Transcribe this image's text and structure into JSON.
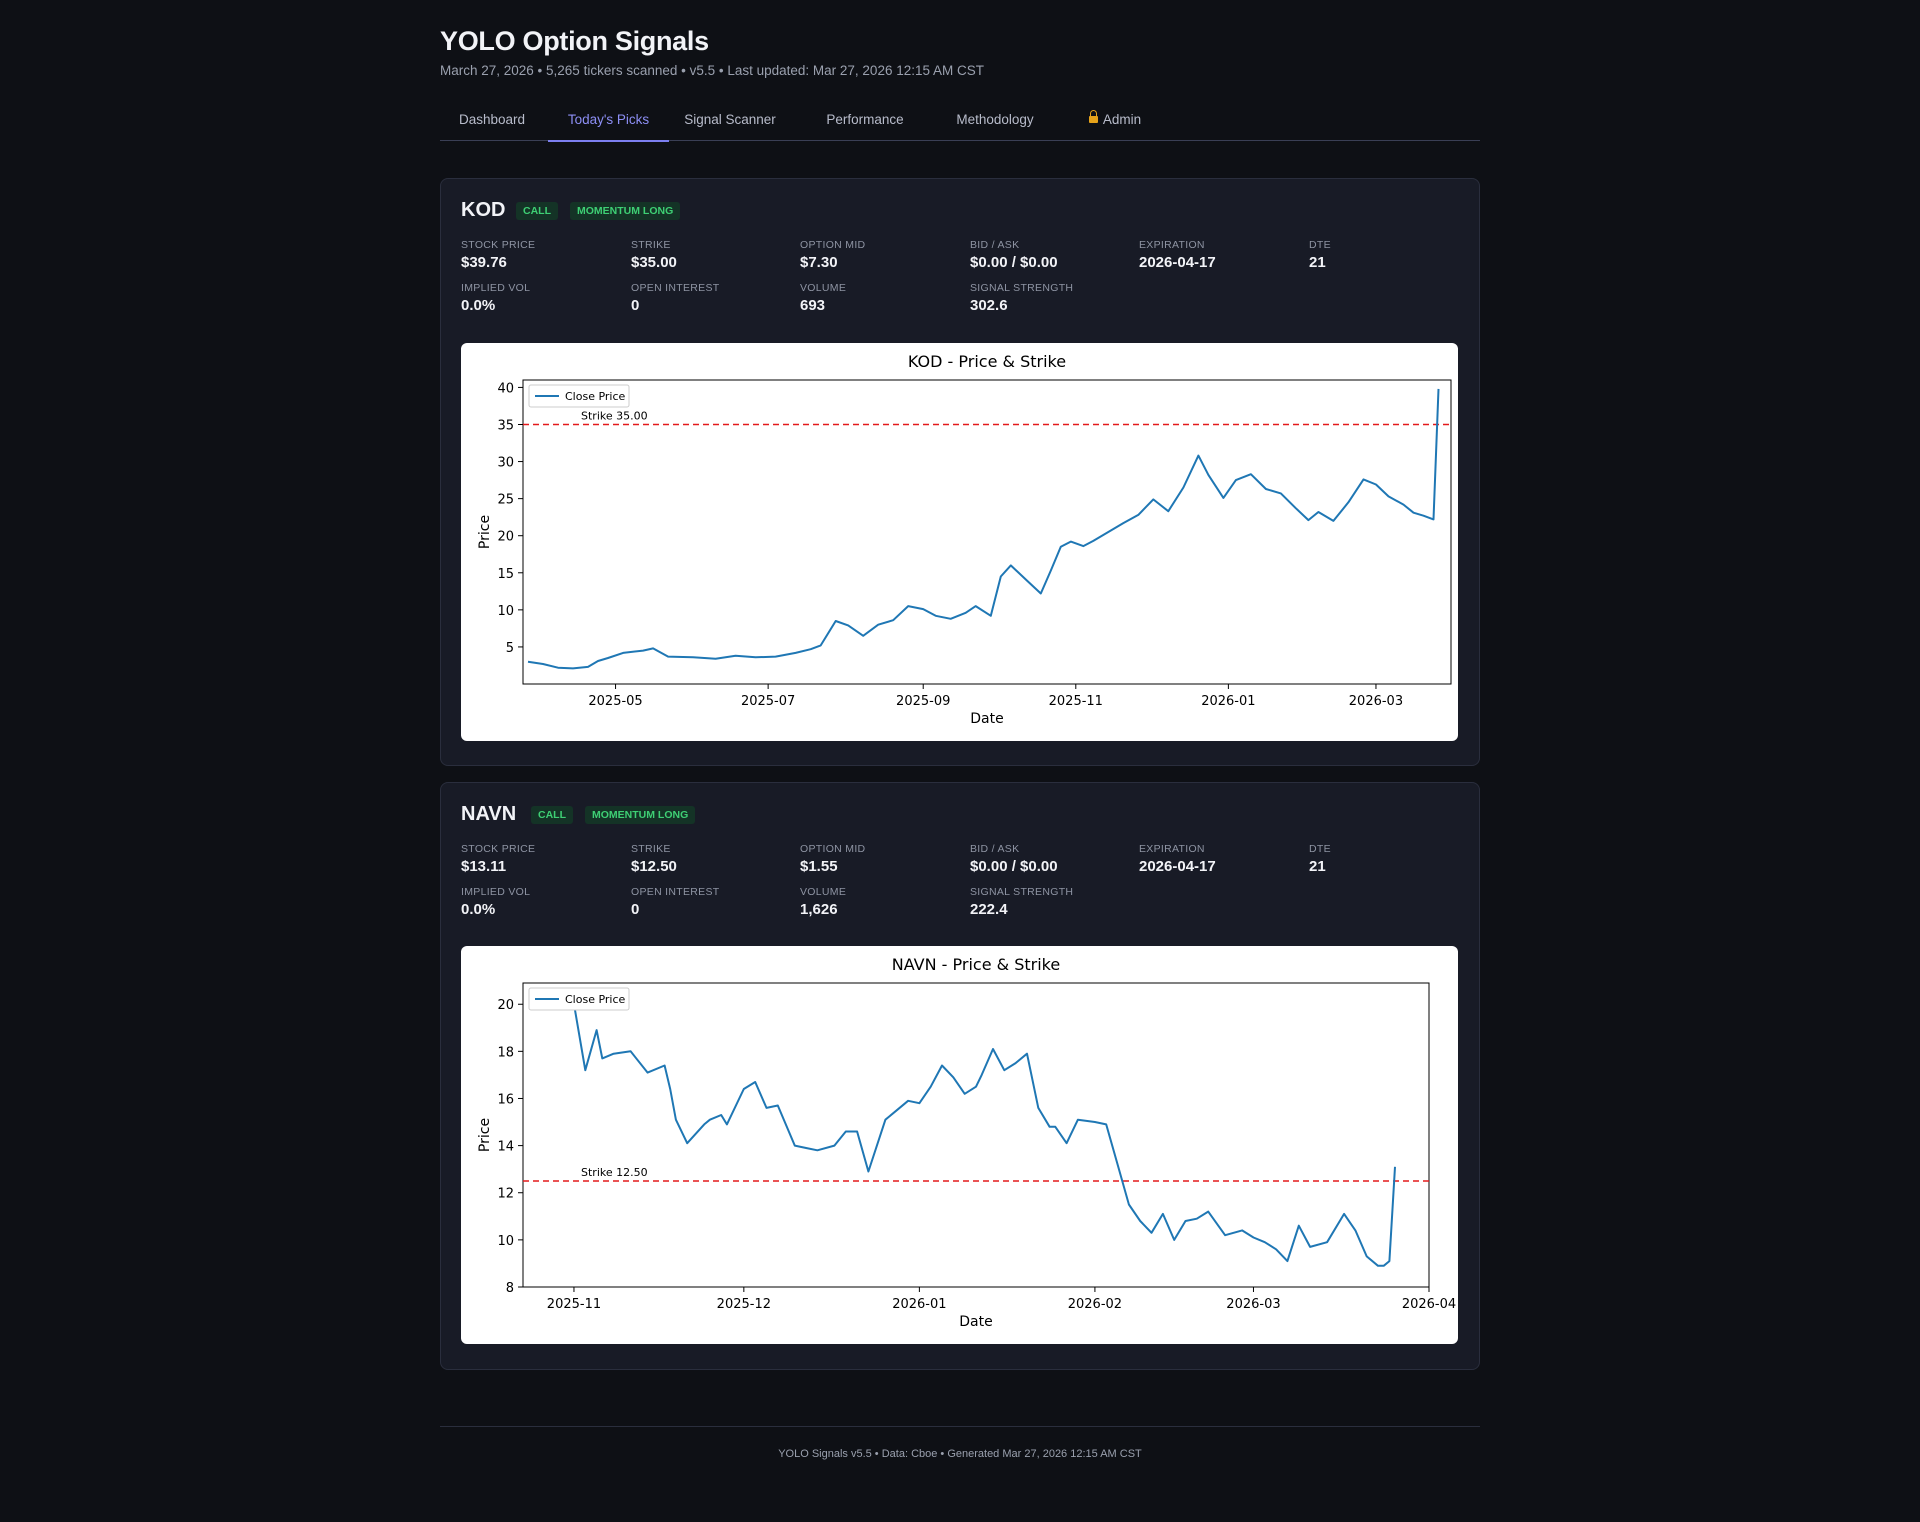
{
  "header": {
    "title": "YOLO Option Signals",
    "subtitle": "March 27, 2026 • 5,265 tickers scanned • v5.5 • Last updated: Mar 27, 2026 12:15 AM CST"
  },
  "nav": {
    "tabs": [
      {
        "label": "Dashboard"
      },
      {
        "label": "Today's Picks",
        "active": true
      },
      {
        "label": "Signal Scanner"
      },
      {
        "label": "Performance"
      },
      {
        "label": "Methodology"
      },
      {
        "label": "Admin",
        "icon": "lock-icon"
      }
    ]
  },
  "colors": {
    "accent": "#7c7ff0",
    "badge_green": "#3ecf74",
    "line": "#1f77b4",
    "strike": "#e41a1c"
  },
  "picks": [
    {
      "ticker": "KOD",
      "badges": [
        "CALL",
        "MOMENTUM LONG"
      ],
      "metrics": [
        {
          "label": "Stock Price",
          "value": "$39.76"
        },
        {
          "label": "Strike",
          "value": "$35.00"
        },
        {
          "label": "Option Mid",
          "value": "$7.30"
        },
        {
          "label": "Bid / Ask",
          "value": "$0.00 / $0.00"
        },
        {
          "label": "Expiration",
          "value": "2026-04-17"
        },
        {
          "label": "DTE",
          "value": "21"
        },
        {
          "label": "Implied Vol",
          "value": "0.0%"
        },
        {
          "label": "Open Interest",
          "value": "0"
        },
        {
          "label": "Volume",
          "value": "693"
        },
        {
          "label": "Signal Strength",
          "value": "302.6"
        }
      ]
    },
    {
      "ticker": "NAVN",
      "badges": [
        "CALL",
        "MOMENTUM LONG"
      ],
      "metrics": [
        {
          "label": "Stock Price",
          "value": "$13.11"
        },
        {
          "label": "Strike",
          "value": "$12.50"
        },
        {
          "label": "Option Mid",
          "value": "$1.55"
        },
        {
          "label": "Bid / Ask",
          "value": "$0.00 / $0.00"
        },
        {
          "label": "Expiration",
          "value": "2026-04-17"
        },
        {
          "label": "DTE",
          "value": "21"
        },
        {
          "label": "Implied Vol",
          "value": "0.0%"
        },
        {
          "label": "Open Interest",
          "value": "0"
        },
        {
          "label": "Volume",
          "value": "1,626"
        },
        {
          "label": "Signal Strength",
          "value": "222.4"
        }
      ]
    }
  ],
  "chart_data": [
    {
      "type": "line",
      "title": "KOD - Price & Strike",
      "xlabel": "Date",
      "ylabel": "Price",
      "legend": "top-left",
      "grid": false,
      "x_range": [
        "2025-03-25",
        "2026-03-31"
      ],
      "ylim": [
        0,
        41
      ],
      "xticks": [
        "2025-05-01",
        "2025-07-01",
        "2025-09-01",
        "2025-11-01",
        "2026-01-01",
        "2026-03-01"
      ],
      "xtick_labels": [
        "2025-05",
        "2025-07",
        "2025-09",
        "2025-11",
        "2026-01",
        "2026-03"
      ],
      "yticks": [
        5,
        10,
        15,
        20,
        25,
        30,
        35,
        40
      ],
      "series": [
        {
          "name": "Close Price",
          "x": [
            "2025-03-27",
            "2025-04-02",
            "2025-04-08",
            "2025-04-14",
            "2025-04-20",
            "2025-04-24",
            "2025-04-28",
            "2025-05-04",
            "2025-05-12",
            "2025-05-16",
            "2025-05-22",
            "2025-06-01",
            "2025-06-10",
            "2025-06-18",
            "2025-06-26",
            "2025-07-04",
            "2025-07-12",
            "2025-07-18",
            "2025-07-22",
            "2025-07-28",
            "2025-08-02",
            "2025-08-08",
            "2025-08-14",
            "2025-08-20",
            "2025-08-26",
            "2025-09-01",
            "2025-09-06",
            "2025-09-12",
            "2025-09-18",
            "2025-09-22",
            "2025-09-28",
            "2025-10-02",
            "2025-10-06",
            "2025-10-12",
            "2025-10-18",
            "2025-10-22",
            "2025-10-26",
            "2025-10-30",
            "2025-11-04",
            "2025-11-08",
            "2025-11-14",
            "2025-11-20",
            "2025-11-26",
            "2025-12-02",
            "2025-12-08",
            "2025-12-14",
            "2025-12-20",
            "2025-12-24",
            "2025-12-30",
            "2026-01-04",
            "2026-01-10",
            "2026-01-16",
            "2026-01-22",
            "2026-01-28",
            "2026-02-02",
            "2026-02-06",
            "2026-02-12",
            "2026-02-18",
            "2026-02-24",
            "2026-03-01",
            "2026-03-06",
            "2026-03-12",
            "2026-03-16",
            "2026-03-20",
            "2026-03-24",
            "2026-03-26"
          ],
          "values": [
            3.0,
            2.7,
            2.2,
            2.1,
            2.3,
            3.1,
            3.5,
            4.2,
            4.5,
            4.8,
            3.7,
            3.6,
            3.4,
            3.8,
            3.6,
            3.7,
            4.2,
            4.7,
            5.2,
            8.5,
            7.9,
            6.5,
            8.0,
            8.6,
            10.5,
            10.1,
            9.2,
            8.8,
            9.6,
            10.5,
            9.2,
            14.5,
            16.0,
            14.1,
            12.2,
            15.3,
            18.5,
            19.2,
            18.6,
            19.3,
            20.5,
            21.7,
            22.8,
            24.9,
            23.3,
            26.5,
            30.8,
            28.2,
            25.1,
            27.5,
            28.3,
            26.3,
            25.7,
            23.7,
            22.1,
            23.2,
            22.0,
            24.5,
            27.6,
            26.9,
            25.3,
            24.2,
            23.1,
            22.7,
            22.2,
            39.8
          ]
        }
      ],
      "strike": {
        "value": 35.0,
        "label": "Strike 35.00"
      }
    },
    {
      "type": "line",
      "title": "NAVN - Price & Strike",
      "xlabel": "Date",
      "ylabel": "Price",
      "legend": "top-left",
      "grid": false,
      "x_range": [
        "2025-10-23",
        "2026-04-01"
      ],
      "ylim": [
        8,
        20.9
      ],
      "xticks": [
        "2025-11-01",
        "2025-12-01",
        "2026-01-01",
        "2026-02-01",
        "2026-03-01",
        "2026-04-01"
      ],
      "xtick_labels": [
        "2025-11",
        "2025-12",
        "2026-01",
        "2026-02",
        "2026-03",
        "2026-04"
      ],
      "yticks": [
        8,
        10,
        12,
        14,
        16,
        18,
        20
      ],
      "series": [
        {
          "name": "Close Price",
          "x": [
            "2025-11-01",
            "2025-11-03",
            "2025-11-05",
            "2025-11-06",
            "2025-11-08",
            "2025-11-11",
            "2025-11-14",
            "2025-11-17",
            "2025-11-18",
            "2025-11-19",
            "2025-11-21",
            "2025-11-24",
            "2025-11-25",
            "2025-11-27",
            "2025-11-28",
            "2025-12-01",
            "2025-12-03",
            "2025-12-05",
            "2025-12-07",
            "2025-12-10",
            "2025-12-12",
            "2025-12-14",
            "2025-12-17",
            "2025-12-19",
            "2025-12-21",
            "2025-12-23",
            "2025-12-26",
            "2025-12-28",
            "2025-12-30",
            "2026-01-01",
            "2026-01-03",
            "2026-01-05",
            "2026-01-07",
            "2026-01-09",
            "2026-01-11",
            "2026-01-12",
            "2026-01-14",
            "2026-01-16",
            "2026-01-18",
            "2026-01-20",
            "2026-01-22",
            "2026-01-24",
            "2026-01-25",
            "2026-01-27",
            "2026-01-29",
            "2026-02-01",
            "2026-02-03",
            "2026-02-05",
            "2026-02-07",
            "2026-02-09",
            "2026-02-11",
            "2026-02-13",
            "2026-02-15",
            "2026-02-17",
            "2026-02-19",
            "2026-02-21",
            "2026-02-24",
            "2026-02-27",
            "2026-03-01",
            "2026-03-03",
            "2026-03-05",
            "2026-03-07",
            "2026-03-09",
            "2026-03-11",
            "2026-03-14",
            "2026-03-17",
            "2026-03-19",
            "2026-03-21",
            "2026-03-23",
            "2026-03-24",
            "2026-03-25",
            "2026-03-26"
          ],
          "values": [
            20.0,
            17.2,
            18.9,
            17.7,
            17.9,
            18.0,
            17.1,
            17.4,
            16.4,
            15.1,
            14.1,
            14.9,
            15.1,
            15.3,
            14.9,
            16.4,
            16.7,
            15.6,
            15.7,
            14.0,
            13.9,
            13.8,
            14.0,
            14.6,
            14.6,
            12.9,
            15.1,
            15.5,
            15.9,
            15.8,
            16.5,
            17.4,
            16.9,
            16.2,
            16.5,
            17.0,
            18.1,
            17.2,
            17.5,
            17.9,
            15.6,
            14.8,
            14.8,
            14.1,
            15.1,
            15.0,
            14.9,
            13.2,
            11.5,
            10.8,
            10.3,
            11.1,
            10.0,
            10.8,
            10.9,
            11.2,
            10.2,
            10.4,
            10.1,
            9.9,
            9.6,
            9.1,
            10.6,
            9.7,
            9.9,
            11.1,
            10.4,
            9.3,
            8.9,
            8.9,
            9.1,
            13.1
          ]
        }
      ],
      "strike": {
        "value": 12.5,
        "label": "Strike 12.50"
      }
    }
  ],
  "footer": {
    "text": "YOLO Signals v5.5 • Data: Cboe • Generated Mar 27, 2026 12:15 AM CST"
  }
}
